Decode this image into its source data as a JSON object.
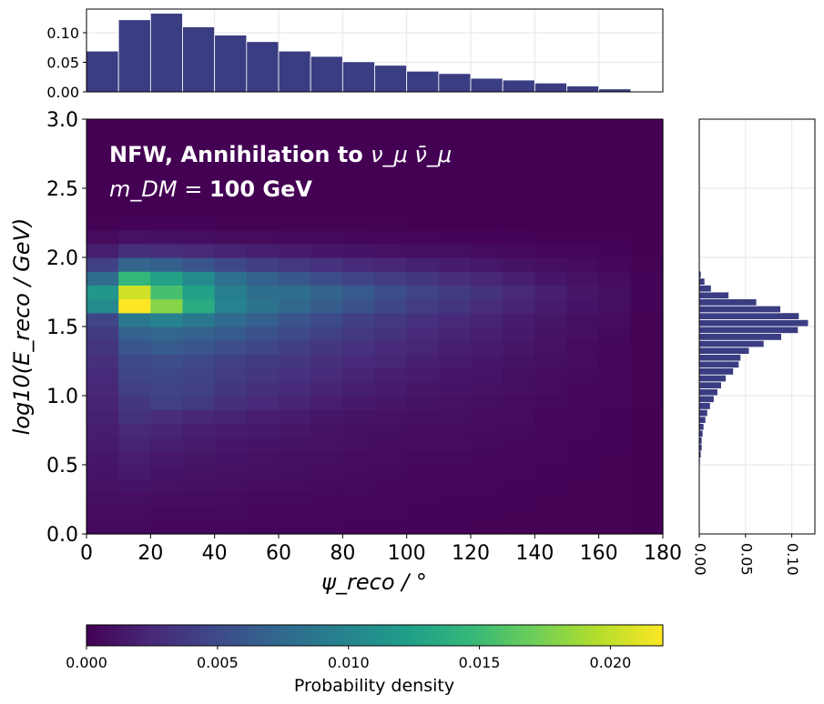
{
  "chart_data": {
    "type": "heatmap",
    "annotation": {
      "line1_text": "NFW, Annihilation to ",
      "line1_math": "ν_μ ν̄_μ",
      "line2_math": "m_DM = ",
      "line2_text": "100 GeV"
    },
    "xlabel": "ψ_reco / °",
    "ylabel": "log10(E_reco / GeV)",
    "xlim": [
      0,
      180
    ],
    "ylim": [
      0,
      3
    ],
    "xticks": [
      "0",
      "20",
      "40",
      "60",
      "80",
      "100",
      "120",
      "140",
      "160",
      "180"
    ],
    "yticks": [
      "0.0",
      "0.5",
      "1.0",
      "1.5",
      "2.0",
      "2.5",
      "3.0"
    ],
    "x_bin_edges": [
      0,
      10,
      20,
      30,
      40,
      50,
      60,
      70,
      80,
      90,
      100,
      110,
      120,
      130,
      140,
      150,
      160,
      170,
      180
    ],
    "y_bin_edges": [
      0.0,
      0.1,
      0.2,
      0.3,
      0.4,
      0.5,
      0.6,
      0.7,
      0.8,
      0.9,
      1.0,
      1.1,
      1.2,
      1.3,
      1.4,
      1.5,
      1.6,
      1.7,
      1.8,
      1.9,
      2.0,
      2.1,
      2.2,
      2.3,
      2.4,
      2.5,
      2.6,
      2.7,
      2.8,
      2.9,
      3.0
    ],
    "heatmap_y_rows_low_to_high": [
      [
        0.0005,
        0.0005,
        0.0004,
        0.0004,
        0.0004,
        0.0003,
        0.0003,
        0.0003,
        0.0002,
        0.0002,
        0.0002,
        0.0002,
        0.0001,
        0.0001,
        0.0001,
        0.0001,
        0.0001,
        0.0
      ],
      [
        0.0006,
        0.0006,
        0.0005,
        0.0005,
        0.0005,
        0.0004,
        0.0004,
        0.0003,
        0.0003,
        0.0003,
        0.0002,
        0.0002,
        0.0002,
        0.0001,
        0.0001,
        0.0001,
        0.0001,
        0.0
      ],
      [
        0.0008,
        0.0008,
        0.0007,
        0.0007,
        0.0006,
        0.0005,
        0.0005,
        0.0004,
        0.0004,
        0.0003,
        0.0003,
        0.0002,
        0.0002,
        0.0002,
        0.0001,
        0.0001,
        0.0001,
        0.0
      ],
      [
        0.001,
        0.0012,
        0.001,
        0.0009,
        0.0008,
        0.0007,
        0.0006,
        0.0005,
        0.0005,
        0.0004,
        0.0004,
        0.0003,
        0.0003,
        0.0002,
        0.0002,
        0.0001,
        0.0001,
        0.0
      ],
      [
        0.0012,
        0.0015,
        0.0012,
        0.0011,
        0.001,
        0.0009,
        0.0008,
        0.0007,
        0.0006,
        0.0005,
        0.0004,
        0.0004,
        0.0003,
        0.0003,
        0.0002,
        0.0002,
        0.0001,
        0.0
      ],
      [
        0.0014,
        0.0018,
        0.0015,
        0.0013,
        0.0012,
        0.001,
        0.0009,
        0.0008,
        0.0007,
        0.0006,
        0.0005,
        0.0005,
        0.0004,
        0.0003,
        0.0003,
        0.0002,
        0.0001,
        0.0
      ],
      [
        0.0016,
        0.0021,
        0.0019,
        0.0016,
        0.0014,
        0.0012,
        0.0011,
        0.001,
        0.0008,
        0.0007,
        0.0006,
        0.0006,
        0.0005,
        0.0004,
        0.0003,
        0.0002,
        0.0002,
        0.0
      ],
      [
        0.0018,
        0.0025,
        0.0022,
        0.0019,
        0.0017,
        0.0015,
        0.0013,
        0.0011,
        0.0009,
        0.0008,
        0.0007,
        0.0007,
        0.0006,
        0.0005,
        0.0004,
        0.0003,
        0.0002,
        0.0
      ],
      [
        0.002,
        0.0032,
        0.0028,
        0.0024,
        0.0021,
        0.0018,
        0.0016,
        0.0013,
        0.0011,
        0.001,
        0.0009,
        0.0008,
        0.0007,
        0.0006,
        0.0004,
        0.0003,
        0.0002,
        0.0
      ],
      [
        0.0022,
        0.0036,
        0.0042,
        0.0038,
        0.003,
        0.0026,
        0.0022,
        0.0018,
        0.0015,
        0.0013,
        0.0011,
        0.001,
        0.0009,
        0.0007,
        0.0005,
        0.0004,
        0.0003,
        0.0001
      ],
      [
        0.0024,
        0.0042,
        0.0045,
        0.0042,
        0.0035,
        0.003,
        0.0026,
        0.0022,
        0.0019,
        0.0016,
        0.0013,
        0.0012,
        0.001,
        0.0008,
        0.0006,
        0.0004,
        0.0003,
        0.0001
      ],
      [
        0.0026,
        0.0046,
        0.0048,
        0.0045,
        0.0039,
        0.0035,
        0.0031,
        0.0026,
        0.0022,
        0.0019,
        0.0016,
        0.0014,
        0.0012,
        0.0009,
        0.0007,
        0.0005,
        0.0003,
        0.0001
      ],
      [
        0.003,
        0.005,
        0.0052,
        0.0048,
        0.0042,
        0.0038,
        0.0035,
        0.003,
        0.0026,
        0.0023,
        0.0019,
        0.0016,
        0.0014,
        0.0011,
        0.0008,
        0.0006,
        0.0004,
        0.0001
      ],
      [
        0.0034,
        0.0058,
        0.0062,
        0.0058,
        0.0052,
        0.0046,
        0.0041,
        0.0035,
        0.0031,
        0.0027,
        0.0023,
        0.0019,
        0.0016,
        0.0013,
        0.001,
        0.0007,
        0.0004,
        0.0001
      ],
      [
        0.0038,
        0.0068,
        0.0072,
        0.0068,
        0.0062,
        0.0055,
        0.0049,
        0.0043,
        0.0037,
        0.0032,
        0.0027,
        0.0022,
        0.0019,
        0.0015,
        0.0011,
        0.0008,
        0.0005,
        0.0001
      ],
      [
        0.0046,
        0.0088,
        0.0098,
        0.0088,
        0.0075,
        0.0066,
        0.0057,
        0.005,
        0.0043,
        0.0037,
        0.0031,
        0.0026,
        0.0022,
        0.0017,
        0.0013,
        0.0009,
        0.0006,
        0.0001
      ],
      [
        0.0105,
        0.022,
        0.018,
        0.0135,
        0.0098,
        0.0085,
        0.0074,
        0.0064,
        0.0055,
        0.0047,
        0.004,
        0.0034,
        0.0028,
        0.0022,
        0.0017,
        0.0012,
        0.0008,
        0.0002
      ],
      [
        0.0115,
        0.0205,
        0.0155,
        0.0125,
        0.0095,
        0.008,
        0.0078,
        0.007,
        0.0062,
        0.0053,
        0.0045,
        0.0038,
        0.0032,
        0.0025,
        0.0019,
        0.0013,
        0.0009,
        0.0002
      ],
      [
        0.0078,
        0.0145,
        0.0125,
        0.0105,
        0.0082,
        0.0068,
        0.006,
        0.0052,
        0.0045,
        0.0039,
        0.0034,
        0.0029,
        0.0024,
        0.0019,
        0.0014,
        0.001,
        0.0007,
        0.0002
      ],
      [
        0.0042,
        0.0072,
        0.0066,
        0.0058,
        0.0048,
        0.0041,
        0.0036,
        0.0031,
        0.0027,
        0.0023,
        0.002,
        0.0017,
        0.0014,
        0.0011,
        0.0008,
        0.0006,
        0.0004,
        0.0001
      ],
      [
        0.0018,
        0.003,
        0.0028,
        0.0025,
        0.0021,
        0.0018,
        0.0016,
        0.0014,
        0.0012,
        0.001,
        0.0009,
        0.0008,
        0.0006,
        0.0005,
        0.0004,
        0.0003,
        0.0002,
        0.0
      ],
      [
        0.0006,
        0.001,
        0.0009,
        0.0008,
        0.0007,
        0.0006,
        0.0005,
        0.0005,
        0.0004,
        0.0003,
        0.0003,
        0.0002,
        0.0002,
        0.0002,
        0.0001,
        0.0001,
        0.0001,
        0.0
      ],
      [
        0.0001,
        0.0002,
        0.0002,
        0.0002,
        0.0001,
        0.0001,
        0.0001,
        0.0001,
        0.0001,
        0.0001,
        0.0,
        0.0,
        0.0,
        0.0,
        0.0,
        0.0,
        0.0,
        0.0
      ],
      [
        0,
        0,
        0,
        0,
        0,
        0,
        0,
        0,
        0,
        0,
        0,
        0,
        0,
        0,
        0,
        0,
        0,
        0
      ],
      [
        0,
        0,
        0,
        0,
        0,
        0,
        0,
        0,
        0,
        0,
        0,
        0,
        0,
        0,
        0,
        0,
        0,
        0
      ],
      [
        0,
        0,
        0,
        0,
        0,
        0,
        0,
        0,
        0,
        0,
        0,
        0,
        0,
        0,
        0,
        0,
        0,
        0
      ],
      [
        0,
        0,
        0,
        0,
        0,
        0,
        0,
        0,
        0,
        0,
        0,
        0,
        0,
        0,
        0,
        0,
        0,
        0
      ],
      [
        0,
        0,
        0,
        0,
        0,
        0,
        0,
        0,
        0,
        0,
        0,
        0,
        0,
        0,
        0,
        0,
        0,
        0
      ],
      [
        0,
        0,
        0,
        0,
        0,
        0,
        0,
        0,
        0,
        0,
        0,
        0,
        0,
        0,
        0,
        0,
        0,
        0
      ],
      [
        0,
        0,
        0,
        0,
        0,
        0,
        0,
        0,
        0,
        0,
        0,
        0,
        0,
        0,
        0,
        0,
        0,
        0
      ]
    ],
    "top_histogram": {
      "values": [
        0.069,
        0.122,
        0.133,
        0.11,
        0.096,
        0.085,
        0.069,
        0.06,
        0.051,
        0.045,
        0.035,
        0.031,
        0.023,
        0.02,
        0.015,
        0.01,
        0.005,
        0.0
      ],
      "yticks": [
        "0.00",
        "0.05",
        "0.10"
      ],
      "ylim": [
        0,
        0.14
      ]
    },
    "right_histogram": {
      "bin_width": 0.05,
      "bin_start": 0.0,
      "values": [
        0,
        0,
        0,
        0,
        0,
        0,
        0,
        0,
        0,
        0,
        0.001,
        0.002,
        0.003,
        0.003,
        0.004,
        0.005,
        0.007,
        0.009,
        0.012,
        0.016,
        0.02,
        0.024,
        0.029,
        0.037,
        0.043,
        0.045,
        0.054,
        0.07,
        0.089,
        0.107,
        0.118,
        0.108,
        0.088,
        0.062,
        0.032,
        0.013,
        0.006,
        0.002,
        0,
        0,
        0,
        0,
        0,
        0,
        0,
        0,
        0,
        0,
        0,
        0,
        0,
        0,
        0,
        0,
        0,
        0,
        0,
        0,
        0,
        0
      ],
      "xticks": [
        "0.00",
        "0.05",
        "0.10"
      ],
      "xlim": [
        0,
        0.125
      ]
    },
    "colorbar": {
      "label": "Probability density",
      "ticks": [
        "0.000",
        "0.005",
        "0.010",
        "0.015",
        "0.020"
      ],
      "vmin": 0.0,
      "vmax": 0.022
    },
    "colors": {
      "hist_bar": "#3b3d82",
      "viridis": [
        "#440154",
        "#482878",
        "#3e4989",
        "#31688e",
        "#26828e",
        "#1f9e89",
        "#35b779",
        "#6ece58",
        "#b5de2b",
        "#fde725"
      ]
    }
  }
}
